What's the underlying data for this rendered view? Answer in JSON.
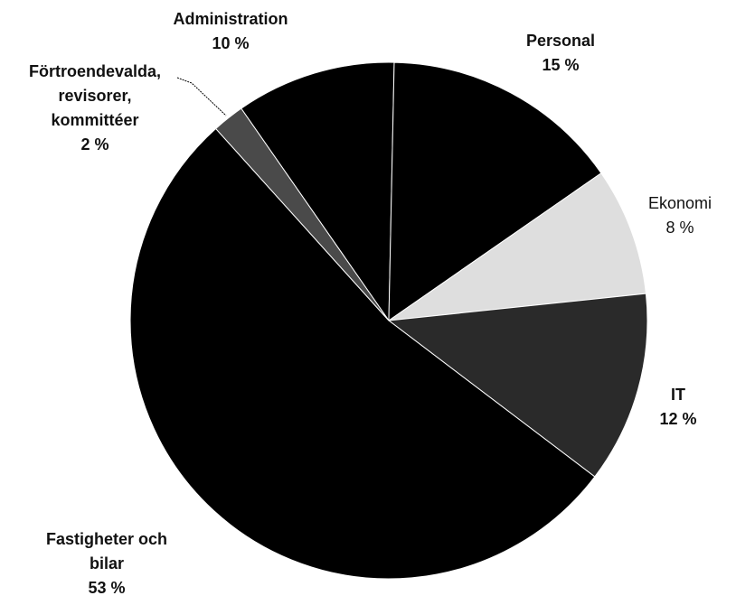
{
  "chart_data": {
    "type": "pie",
    "categories": [
      "Administration",
      "Personal",
      "Ekonomi",
      "IT",
      "Fastigheter och bilar",
      "Förtroendevalda, revisorer, kommittéer"
    ],
    "values": [
      10,
      15,
      8,
      12,
      53,
      2
    ],
    "value_labels": [
      "10 %",
      "15 %",
      "8 %",
      "12 %",
      "53 %",
      "2 %"
    ],
    "colors": [
      "#000000",
      "#000000",
      "#dedede",
      "#2a2a2a",
      "#000000",
      "#4a4a4a"
    ]
  }
}
